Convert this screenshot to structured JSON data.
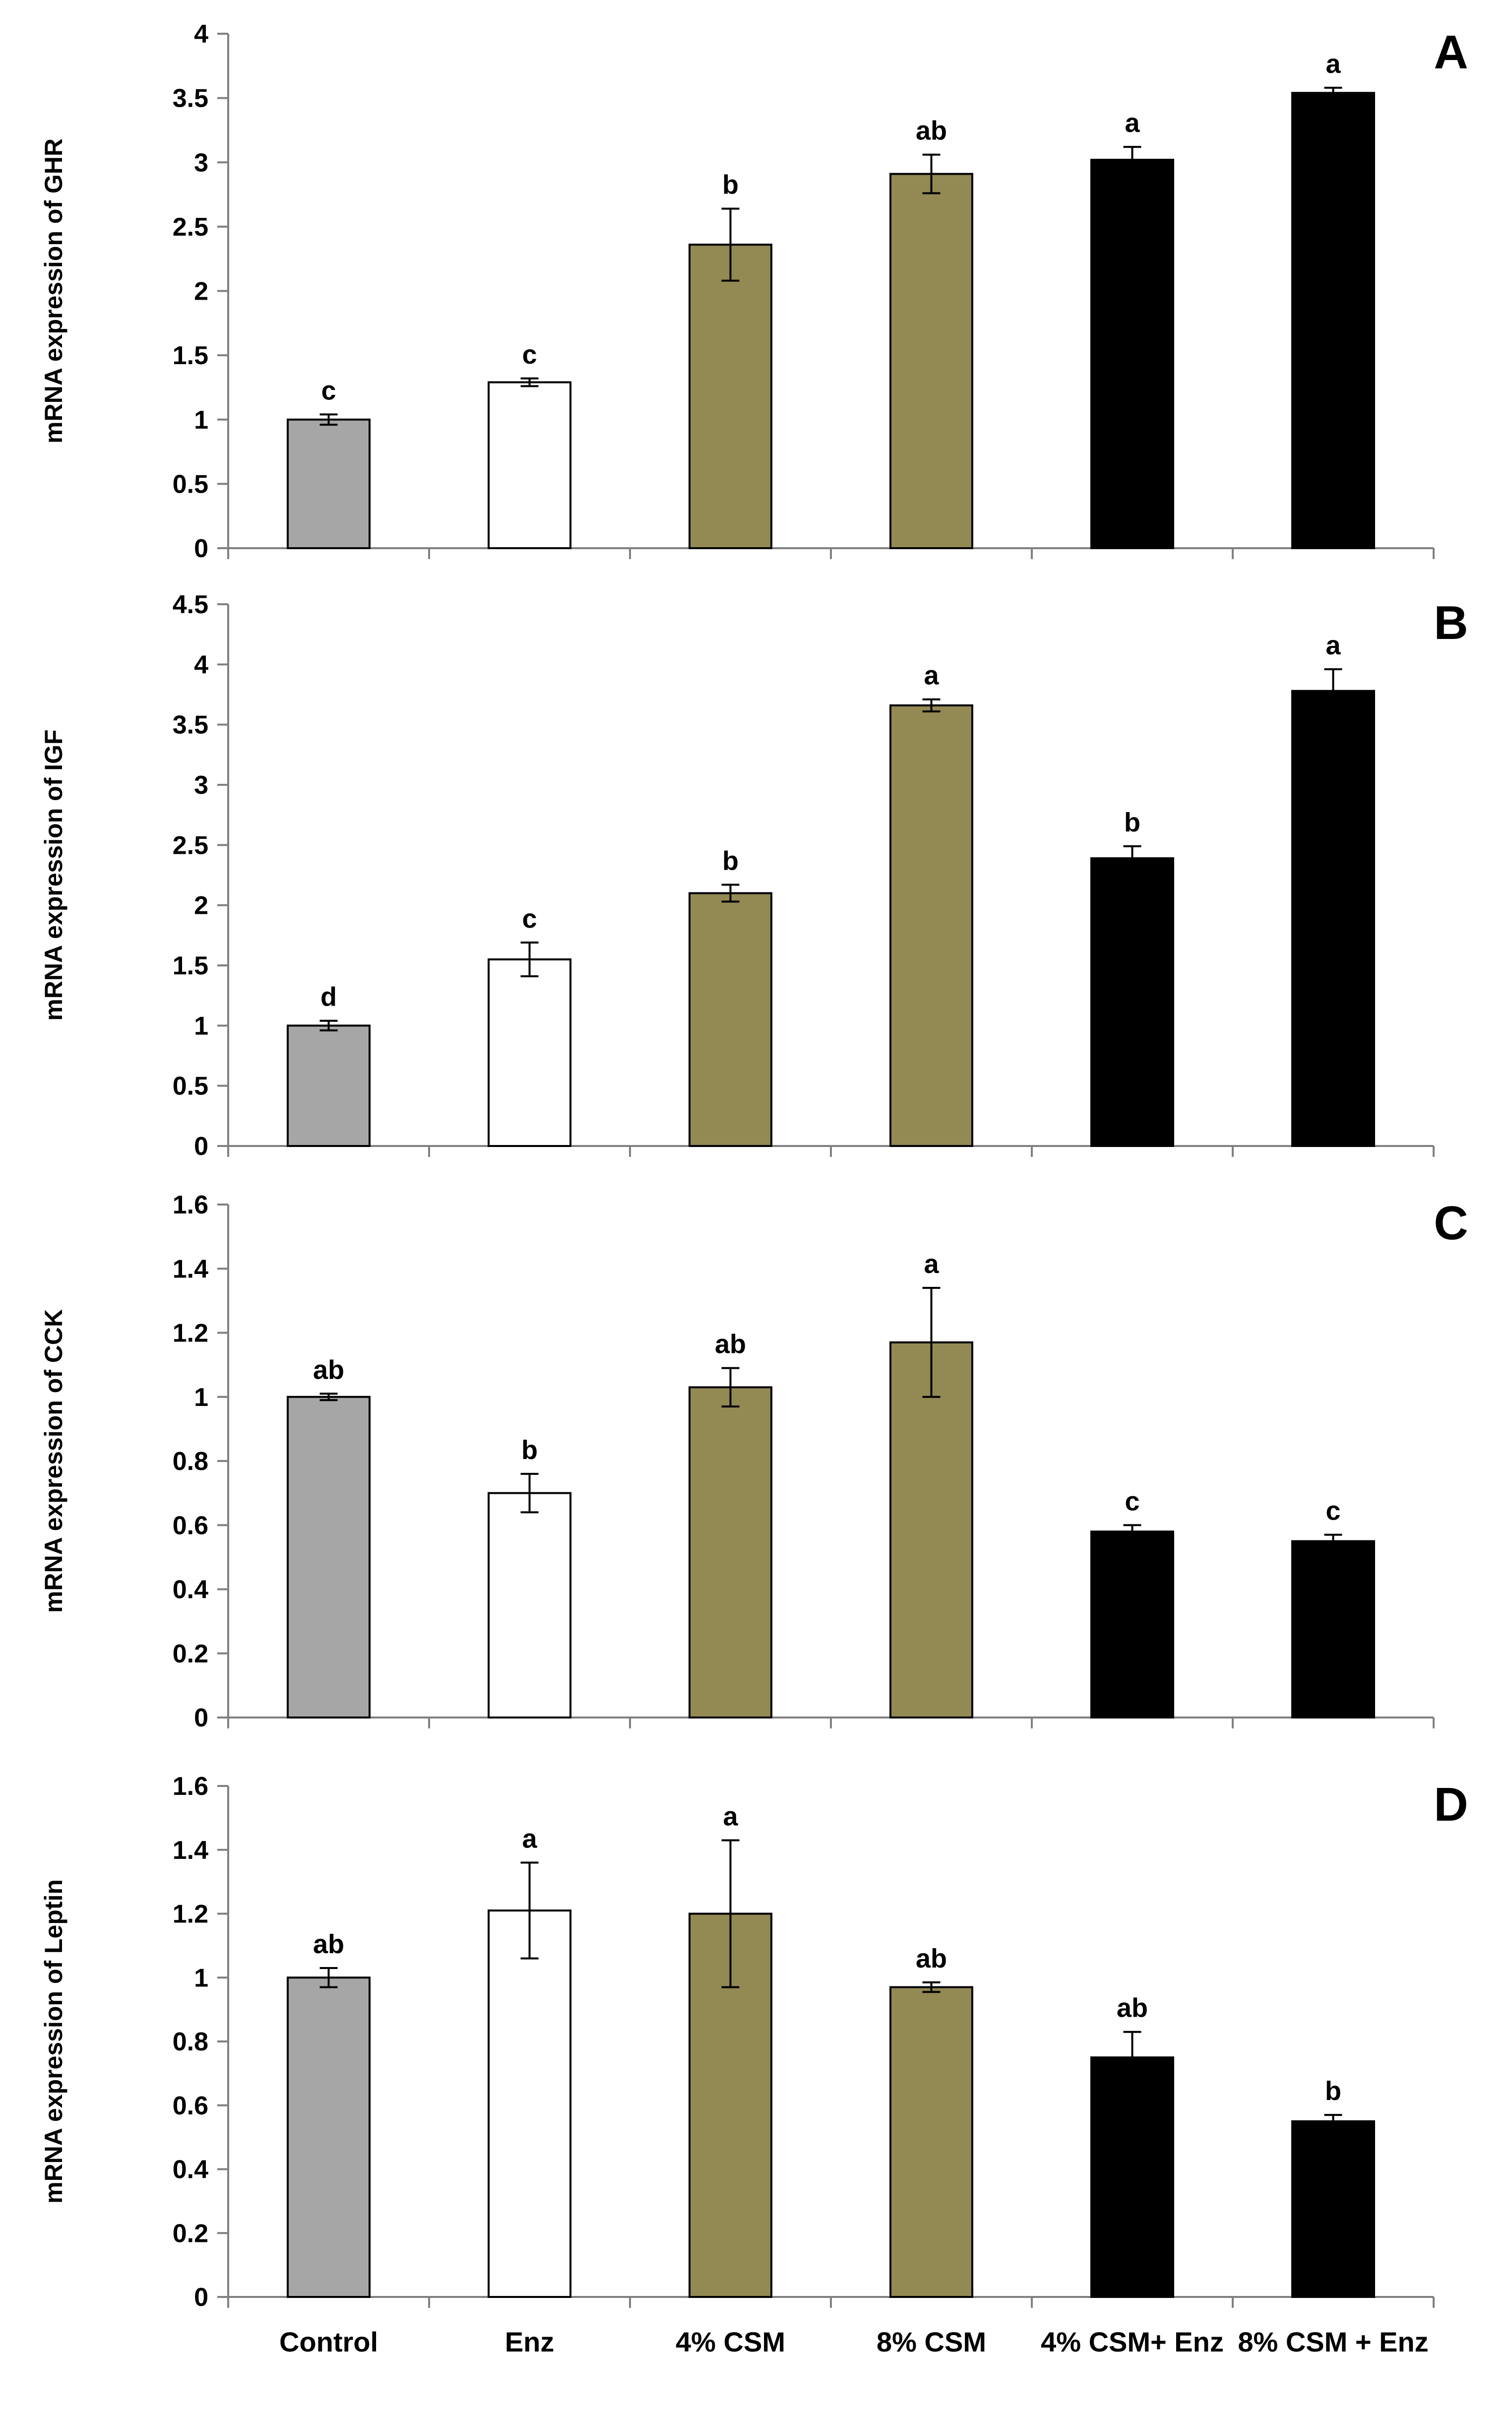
{
  "chart_data": [
    {
      "type": "bar",
      "panel_label": "A",
      "ylabel": "mRNA expression of GHR",
      "categories": [
        "Control",
        "Enz",
        "4% CSM",
        "8% CSM",
        "4% CSM+ Enz",
        "8% CSM + Enz"
      ],
      "values": [
        1.0,
        1.29,
        2.36,
        2.91,
        3.02,
        3.54
      ],
      "errors": [
        0.04,
        0.03,
        0.28,
        0.15,
        0.1,
        0.04
      ],
      "significance": [
        "c",
        "c",
        "b",
        "ab",
        "a",
        "a"
      ],
      "colors": [
        "#a6a6a6",
        "#ffffff",
        "#938953",
        "#938953",
        "#000000",
        "#000000"
      ],
      "ylim": [
        0,
        4
      ],
      "yticks": [
        "0",
        "0.5",
        "1",
        "1.5",
        "2",
        "2.5",
        "3",
        "3.5",
        "4"
      ],
      "show_category_labels": false
    },
    {
      "type": "bar",
      "panel_label": "B",
      "ylabel": "mRNA expression of IGF",
      "categories": [
        "Control",
        "Enz",
        "4% CSM",
        "8% CSM",
        "4% CSM+ Enz",
        "8% CSM + Enz"
      ],
      "values": [
        1.0,
        1.55,
        2.1,
        3.66,
        2.39,
        3.78
      ],
      "errors": [
        0.04,
        0.14,
        0.07,
        0.05,
        0.1,
        0.18
      ],
      "significance": [
        "d",
        "c",
        "b",
        "a",
        "b",
        "a"
      ],
      "colors": [
        "#a6a6a6",
        "#ffffff",
        "#938953",
        "#938953",
        "#000000",
        "#000000"
      ],
      "ylim": [
        0,
        4.5
      ],
      "yticks": [
        "0",
        "0.5",
        "1",
        "1.5",
        "2",
        "2.5",
        "3",
        "3.5",
        "4",
        "4.5"
      ],
      "show_category_labels": false
    },
    {
      "type": "bar",
      "panel_label": "C",
      "ylabel": "mRNA expression of CCK",
      "categories": [
        "Control",
        "Enz",
        "4% CSM",
        "8% CSM",
        "4% CSM+ Enz",
        "8% CSM + Enz"
      ],
      "values": [
        1.0,
        0.7,
        1.03,
        1.17,
        0.58,
        0.55
      ],
      "errors": [
        0.01,
        0.06,
        0.06,
        0.17,
        0.02,
        0.02
      ],
      "significance": [
        "ab",
        "b",
        "ab",
        "a",
        "c",
        "c"
      ],
      "colors": [
        "#a6a6a6",
        "#ffffff",
        "#938953",
        "#938953",
        "#000000",
        "#000000"
      ],
      "ylim": [
        0,
        1.6
      ],
      "yticks": [
        "0",
        "0.2",
        "0.4",
        "0.6",
        "0.8",
        "1",
        "1.2",
        "1.4",
        "1.6"
      ],
      "show_category_labels": false
    },
    {
      "type": "bar",
      "panel_label": "D",
      "ylabel": "mRNA expression of Leptin",
      "categories": [
        "Control",
        "Enz",
        "4% CSM",
        "8% CSM",
        "4% CSM+ Enz",
        "8% CSM + Enz"
      ],
      "values": [
        1.0,
        1.21,
        1.2,
        0.97,
        0.75,
        0.55
      ],
      "errors": [
        0.03,
        0.15,
        0.23,
        0.015,
        0.08,
        0.02
      ],
      "significance": [
        "ab",
        "a",
        "a",
        "ab",
        "ab",
        "b"
      ],
      "colors": [
        "#a6a6a6",
        "#ffffff",
        "#938953",
        "#938953",
        "#000000",
        "#000000"
      ],
      "ylim": [
        0,
        1.6
      ],
      "yticks": [
        "0",
        "0.2",
        "0.4",
        "0.6",
        "0.8",
        "1",
        "1.2",
        "1.4",
        "1.6"
      ],
      "show_category_labels": true
    }
  ]
}
